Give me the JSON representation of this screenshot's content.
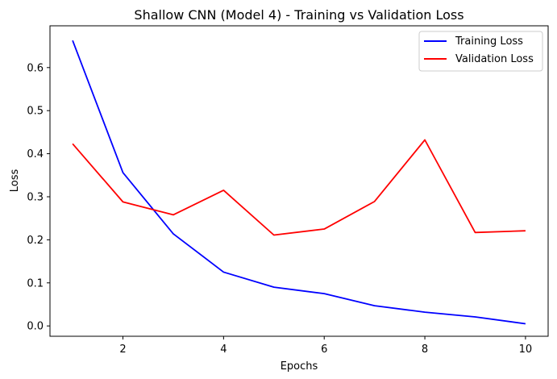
{
  "chart_data": {
    "type": "line",
    "title": "Shallow CNN (Model 4) - Training vs Validation Loss",
    "xlabel": "Epochs",
    "ylabel": "Loss",
    "x": [
      1,
      2,
      3,
      4,
      5,
      6,
      7,
      8,
      9,
      10
    ],
    "xlim": [
      0.55,
      10.45
    ],
    "ylim": [
      -0.024,
      0.697
    ],
    "xticks": [
      2,
      4,
      6,
      8,
      10
    ],
    "yticks": [
      0.0,
      0.1,
      0.2,
      0.3,
      0.4,
      0.5,
      0.6
    ],
    "xtick_labels": [
      "2",
      "4",
      "6",
      "8",
      "10"
    ],
    "ytick_labels": [
      "0.0",
      "0.1",
      "0.2",
      "0.3",
      "0.4",
      "0.5",
      "0.6"
    ],
    "grid": false,
    "legend_position": "top-right",
    "series": [
      {
        "name": "Training Loss",
        "color": "#0000ff",
        "values": [
          0.663,
          0.356,
          0.214,
          0.125,
          0.09,
          0.075,
          0.047,
          0.032,
          0.021,
          0.005
        ]
      },
      {
        "name": "Validation Loss",
        "color": "#ff0000",
        "values": [
          0.423,
          0.288,
          0.258,
          0.315,
          0.211,
          0.225,
          0.289,
          0.432,
          0.217,
          0.221
        ]
      }
    ]
  }
}
